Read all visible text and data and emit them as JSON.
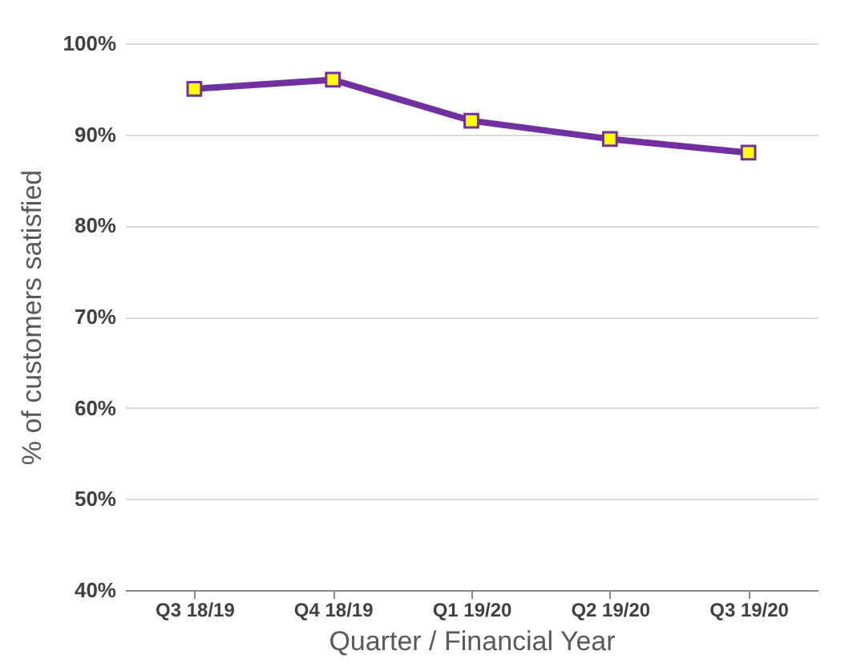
{
  "chart_data": {
    "type": "line",
    "xlabel": "Quarter / Financial Year",
    "ylabel": "% of customers satisfied",
    "categories": [
      "Q3 18/19",
      "Q4 18/19",
      "Q1 19/20",
      "Q2 19/20",
      "Q3 19/20"
    ],
    "series": [
      {
        "color": "#7030a0",
        "values": [
          95,
          96,
          91.5,
          89.5,
          88
        ]
      }
    ],
    "ylim": [
      40,
      100
    ],
    "yticks": [
      {
        "value": 40,
        "label": "40%"
      },
      {
        "value": 50,
        "label": "50%"
      },
      {
        "value": 60,
        "label": "60%"
      },
      {
        "value": 70,
        "label": "70%"
      },
      {
        "value": 80,
        "label": "80%"
      },
      {
        "value": 90,
        "label": "90%"
      },
      {
        "value": 100,
        "label": "100%"
      }
    ],
    "grid": "y",
    "marker": "square",
    "line_style": "solid"
  }
}
